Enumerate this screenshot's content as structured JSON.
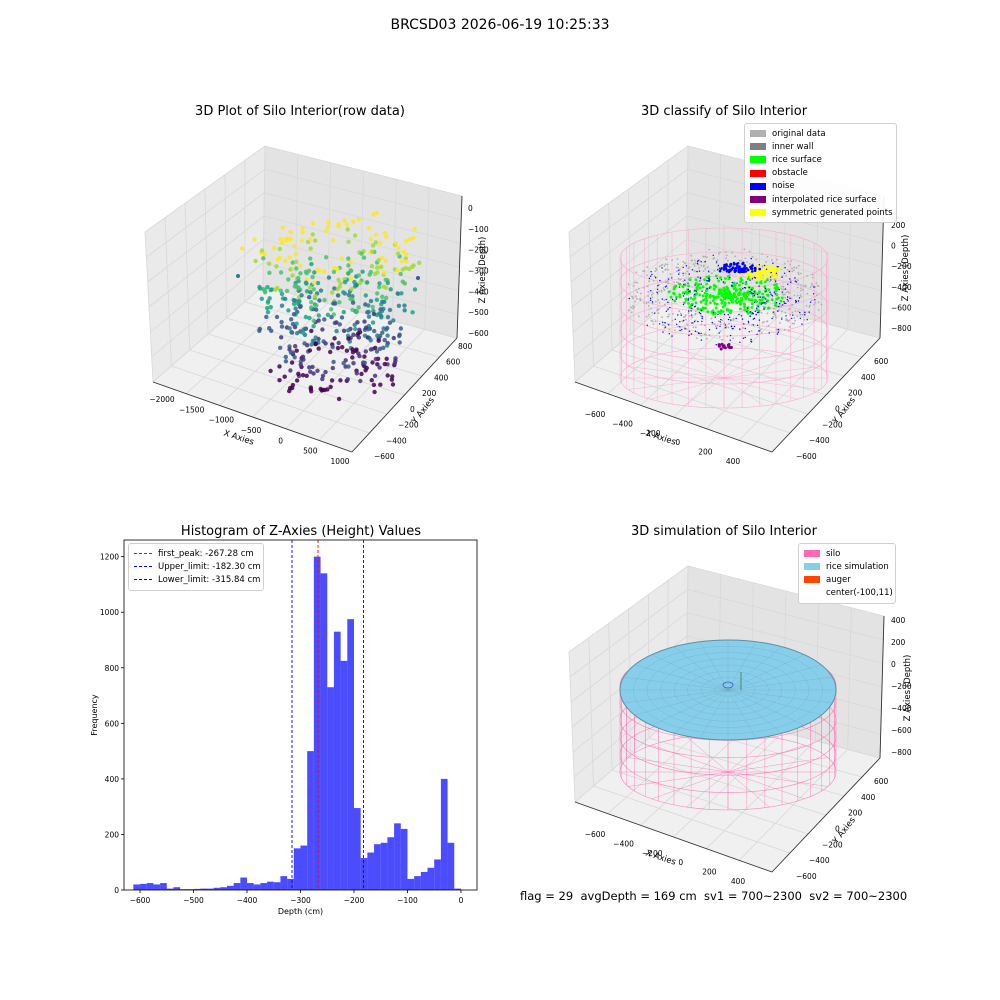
{
  "suptitle": "BRCSD03 2026-06-19 10:25:33",
  "footer": "flag = 29  avgDepth = 169 cm  sv1 = 700~2300  sv2 = 700~2300",
  "colors": {
    "original_data": "#b0b0b0",
    "inner_wall": "#808080",
    "rice_surface": "#00ff00",
    "obstacle": "#ff0000",
    "noise": "#0000ff",
    "interpolated_rice_surface": "#800080",
    "symmetric_generated_points": "#ffff00",
    "silo": "#ff69b4",
    "rice_simulation": "#87ceeb",
    "auger": "#ff4500",
    "histogram": "#0000ff"
  },
  "panels": {
    "raw": {
      "title": "3D Plot of Silo Interior(row data)",
      "xlabel": "X Axies",
      "ylabel": "Y Axies",
      "zlabel": "Z Axies (Depth)",
      "xticks": [
        "−2000",
        "−1500",
        "−1000",
        "−500",
        "0",
        "500",
        "1000"
      ],
      "yticks": [
        "−600",
        "−400",
        "−200",
        "0",
        "200",
        "400",
        "600",
        "800"
      ],
      "zticks": [
        "0",
        "−100",
        "−200",
        "−300",
        "−400",
        "−500",
        "−600"
      ]
    },
    "classify": {
      "title": "3D classify of Silo Interior",
      "xlabel": "X Axies",
      "ylabel": "Y Axies",
      "zlabel": "Z Axies (Depth)",
      "xticks": [
        "−600",
        "−400",
        "−200",
        "0",
        "200",
        "400"
      ],
      "yticks": [
        "−600",
        "−400",
        "−200",
        "0",
        "200",
        "400",
        "600"
      ],
      "zticks": [
        "200",
        "0",
        "−200",
        "−400",
        "−600",
        "−800"
      ],
      "legend": [
        {
          "label": "original data",
          "color": "#b0b0b0"
        },
        {
          "label": "inner wall",
          "color": "#808080"
        },
        {
          "label": "rice surface",
          "color": "#00ff00"
        },
        {
          "label": "obstacle",
          "color": "#ff0000"
        },
        {
          "label": "noise",
          "color": "#0000ff"
        },
        {
          "label": "interpolated rice surface",
          "color": "#800080"
        },
        {
          "label": "symmetric generated points",
          "color": "#ffff00"
        }
      ]
    },
    "simulation": {
      "title": "3D simulation of Silo Interior",
      "xlabel": "X Axies",
      "ylabel": "Y Axies",
      "zlabel": "Z Axies (Depth)",
      "xticks": [
        "−600",
        "−400",
        "−200",
        "0",
        "200",
        "400"
      ],
      "yticks": [
        "−600",
        "−400",
        "−200",
        "0",
        "200",
        "400",
        "600"
      ],
      "zticks": [
        "400",
        "200",
        "0",
        "−200",
        "−400",
        "−600",
        "−800"
      ],
      "legend": [
        {
          "label": "silo",
          "color": "#ff69b4"
        },
        {
          "label": "rice simulation",
          "color": "#87ceeb"
        },
        {
          "label": "auger",
          "color": "#ff4500"
        },
        {
          "label": "center(-100,11)",
          "color": ""
        }
      ]
    }
  },
  "chart_data": {
    "type": "bar",
    "title": "Histogram of Z-Axies (Height) Values",
    "xlabel": "Depth (cm)",
    "ylabel": "Frequency",
    "xlim": [
      -630,
      30
    ],
    "ylim": [
      0,
      1260
    ],
    "xticks": [
      -600,
      -500,
      -400,
      -300,
      -200,
      -100,
      0
    ],
    "yticks": [
      0,
      200,
      400,
      600,
      800,
      1000,
      1200
    ],
    "bin_width": 12.5,
    "bins_start": [
      -612.5,
      -600,
      -587.5,
      -575,
      -562.5,
      -550,
      -537.5,
      -525,
      -512.5,
      -500,
      -487.5,
      -475,
      -462.5,
      -450,
      -437.5,
      -425,
      -412.5,
      -400,
      -387.5,
      -375,
      -362.5,
      -350,
      -337.5,
      -325,
      -312.5,
      -300,
      -287.5,
      -275,
      -262.5,
      -250,
      -237.5,
      -225,
      -212.5,
      -200,
      -187.5,
      -175,
      -162.5,
      -150,
      -137.5,
      -125,
      -112.5,
      -100,
      -87.5,
      -75,
      -62.5,
      -50,
      -37.5,
      -25,
      -12.5
    ],
    "values": [
      20,
      22,
      25,
      20,
      25,
      5,
      10,
      3,
      3,
      4,
      5,
      5,
      8,
      10,
      15,
      25,
      45,
      25,
      20,
      25,
      30,
      28,
      50,
      40,
      150,
      160,
      500,
      1200,
      1140,
      730,
      930,
      825,
      975,
      295,
      115,
      135,
      165,
      170,
      190,
      240,
      220,
      40,
      50,
      65,
      80,
      110,
      400,
      170,
      5
    ],
    "vlines": [
      {
        "label": "first_peak: -267.28 cm",
        "x": -267.28,
        "color": "#ff0000"
      },
      {
        "label": "Upper_limit: -182.30 cm",
        "x": -182.3,
        "color": "#0000ff"
      },
      {
        "label": "Lower_limit: -315.84 cm",
        "x": -315.84,
        "color": "#0000ff"
      }
    ]
  }
}
